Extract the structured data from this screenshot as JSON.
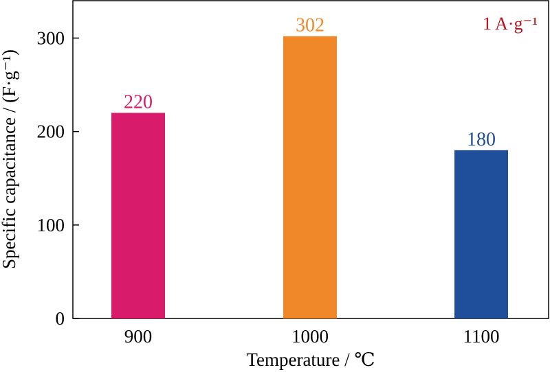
{
  "chart_data": {
    "type": "bar",
    "categories": [
      "900",
      "1000",
      "1100"
    ],
    "values": [
      220,
      302,
      180
    ],
    "data_labels": [
      "220",
      "302",
      "180"
    ],
    "colors": [
      "#d81b6a",
      "#f0882a",
      "#1f4e9a"
    ],
    "xlabel": "Temperature / ℃",
    "ylabel": "Specific capacitance / (F·g⁻¹)",
    "ylim": [
      0,
      340
    ],
    "yticks": [
      "0",
      "100",
      "200",
      "300"
    ],
    "ytick_values": [
      0,
      100,
      200,
      300
    ],
    "annotation": "1 A·g⁻¹",
    "annotation_color": "#c0111a",
    "grid": false
  }
}
